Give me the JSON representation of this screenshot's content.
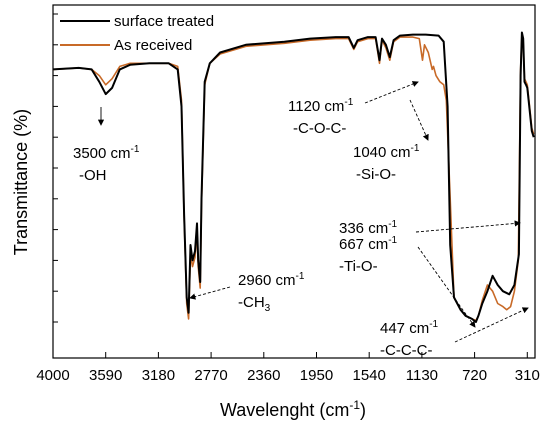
{
  "chart_data": {
    "type": "line",
    "title": "",
    "xlabel": "Wavelenght (cm",
    "xlabel_sup": "-1",
    "xlabel_tail": ")",
    "ylabel": "Transmittance (%)",
    "xlim": [
      4000,
      250
    ],
    "x_reversed": true,
    "x_ticks": [
      "4000",
      "3590",
      "3180",
      "2770",
      "2360",
      "1950",
      "1540",
      "1130",
      "720",
      "310"
    ],
    "y_ticks_labeled": false,
    "legend_position": "top-left",
    "series": [
      {
        "name": "surface treated",
        "color": "#000000",
        "points": [
          [
            4000,
            82
          ],
          [
            3800,
            82.5
          ],
          [
            3700,
            82
          ],
          [
            3640,
            78
          ],
          [
            3590,
            74
          ],
          [
            3540,
            76
          ],
          [
            3480,
            82
          ],
          [
            3400,
            83.5
          ],
          [
            3250,
            84
          ],
          [
            3100,
            84
          ],
          [
            3030,
            82
          ],
          [
            3000,
            70
          ],
          [
            2980,
            35
          ],
          [
            2960,
            8
          ],
          [
            2945,
            3
          ],
          [
            2930,
            25
          ],
          [
            2915,
            20
          ],
          [
            2895,
            23
          ],
          [
            2880,
            32
          ],
          [
            2870,
            20
          ],
          [
            2855,
            13
          ],
          [
            2845,
            40
          ],
          [
            2820,
            78
          ],
          [
            2780,
            84
          ],
          [
            2700,
            87.5
          ],
          [
            2500,
            90
          ],
          [
            2200,
            91
          ],
          [
            2000,
            92
          ],
          [
            1800,
            92.5
          ],
          [
            1700,
            92.5
          ],
          [
            1660,
            89
          ],
          [
            1630,
            91.5
          ],
          [
            1550,
            92.5
          ],
          [
            1490,
            92.5
          ],
          [
            1460,
            85
          ],
          [
            1440,
            92
          ],
          [
            1410,
            90
          ],
          [
            1380,
            86
          ],
          [
            1350,
            91.5
          ],
          [
            1300,
            93
          ],
          [
            1200,
            93.3
          ],
          [
            1100,
            93.3
          ],
          [
            1000,
            93
          ],
          [
            960,
            91
          ],
          [
            930,
            70
          ],
          [
            910,
            25
          ],
          [
            880,
            8
          ],
          [
            830,
            4
          ],
          [
            790,
            2
          ],
          [
            740,
            1
          ],
          [
            710,
            0
          ],
          [
            690,
            2
          ],
          [
            660,
            6
          ],
          [
            620,
            10
          ],
          [
            580,
            15
          ],
          [
            540,
            12
          ],
          [
            500,
            10
          ],
          [
            450,
            9
          ],
          [
            410,
            12
          ],
          [
            375,
            22
          ],
          [
            362,
            80
          ],
          [
            352,
            94
          ],
          [
            342,
            92
          ],
          [
            332,
            78
          ],
          [
            320,
            77
          ],
          [
            310,
            76
          ],
          [
            300,
            72
          ],
          [
            290,
            68
          ],
          [
            275,
            62
          ],
          [
            260,
            60
          ]
        ]
      },
      {
        "name": "As received",
        "color": "#c86a28",
        "points": [
          [
            4000,
            82
          ],
          [
            3800,
            82.5
          ],
          [
            3700,
            82
          ],
          [
            3640,
            80
          ],
          [
            3590,
            77
          ],
          [
            3540,
            79
          ],
          [
            3480,
            83
          ],
          [
            3400,
            84
          ],
          [
            3250,
            84
          ],
          [
            3100,
            84
          ],
          [
            3030,
            83
          ],
          [
            3000,
            72
          ],
          [
            2980,
            34
          ],
          [
            2960,
            6
          ],
          [
            2945,
            1
          ],
          [
            2930,
            22
          ],
          [
            2915,
            18
          ],
          [
            2895,
            21
          ],
          [
            2880,
            30
          ],
          [
            2870,
            18
          ],
          [
            2855,
            11
          ],
          [
            2845,
            38
          ],
          [
            2820,
            77
          ],
          [
            2780,
            84
          ],
          [
            2700,
            87
          ],
          [
            2500,
            89.5
          ],
          [
            2200,
            90.5
          ],
          [
            2000,
            91.5
          ],
          [
            1800,
            92
          ],
          [
            1700,
            92
          ],
          [
            1660,
            88.5
          ],
          [
            1630,
            91
          ],
          [
            1550,
            92
          ],
          [
            1490,
            92
          ],
          [
            1460,
            84
          ],
          [
            1440,
            91.5
          ],
          [
            1410,
            89
          ],
          [
            1380,
            85
          ],
          [
            1350,
            91
          ],
          [
            1300,
            92.5
          ],
          [
            1200,
            92.5
          ],
          [
            1150,
            92
          ],
          [
            1125,
            85
          ],
          [
            1110,
            90
          ],
          [
            1080,
            87.5
          ],
          [
            1050,
            82
          ],
          [
            1040,
            83
          ],
          [
            1020,
            80
          ],
          [
            990,
            78
          ],
          [
            960,
            77
          ],
          [
            940,
            72
          ],
          [
            910,
            40
          ],
          [
            880,
            8
          ],
          [
            830,
            4
          ],
          [
            790,
            2
          ],
          [
            740,
            1
          ],
          [
            710,
            0.5
          ],
          [
            690,
            2
          ],
          [
            660,
            7
          ],
          [
            620,
            12
          ],
          [
            580,
            10
          ],
          [
            540,
            6
          ],
          [
            500,
            5
          ],
          [
            470,
            4
          ],
          [
            440,
            5
          ],
          [
            410,
            10
          ],
          [
            380,
            20
          ],
          [
            362,
            82
          ],
          [
            352,
            93
          ],
          [
            342,
            91
          ],
          [
            332,
            79
          ],
          [
            320,
            78
          ],
          [
            310,
            77
          ],
          [
            300,
            73
          ],
          [
            290,
            69
          ],
          [
            275,
            63
          ],
          [
            260,
            61
          ]
        ]
      }
    ],
    "annotations": [
      {
        "value": "3500 cm",
        "sup": "-1",
        "group": "-OH",
        "at": [
          3560,
          71
        ]
      },
      {
        "value": "2960 cm",
        "sup": "-1",
        "group": "-CH",
        "group_sub": "3",
        "at": [
          2945,
          6
        ]
      },
      {
        "value": "1120 cm",
        "sup": "-1",
        "group": "-C-O-C-",
        "at": [
          1130,
          92
        ]
      },
      {
        "value": "1040 cm",
        "sup": "-1",
        "group": "-Si-O-",
        "at": [
          1060,
          82
        ]
      },
      {
        "value": "336 cm",
        "sup": "-1",
        "at": [
          320,
          50
        ]
      },
      {
        "value": "667 cm",
        "sup": "-1",
        "group": "-Ti-O-",
        "at": [
          740,
          2
        ]
      },
      {
        "value": "447 cm",
        "sup": "-1",
        "group": "-C-C-C-",
        "at": [
          460,
          4
        ]
      }
    ]
  }
}
